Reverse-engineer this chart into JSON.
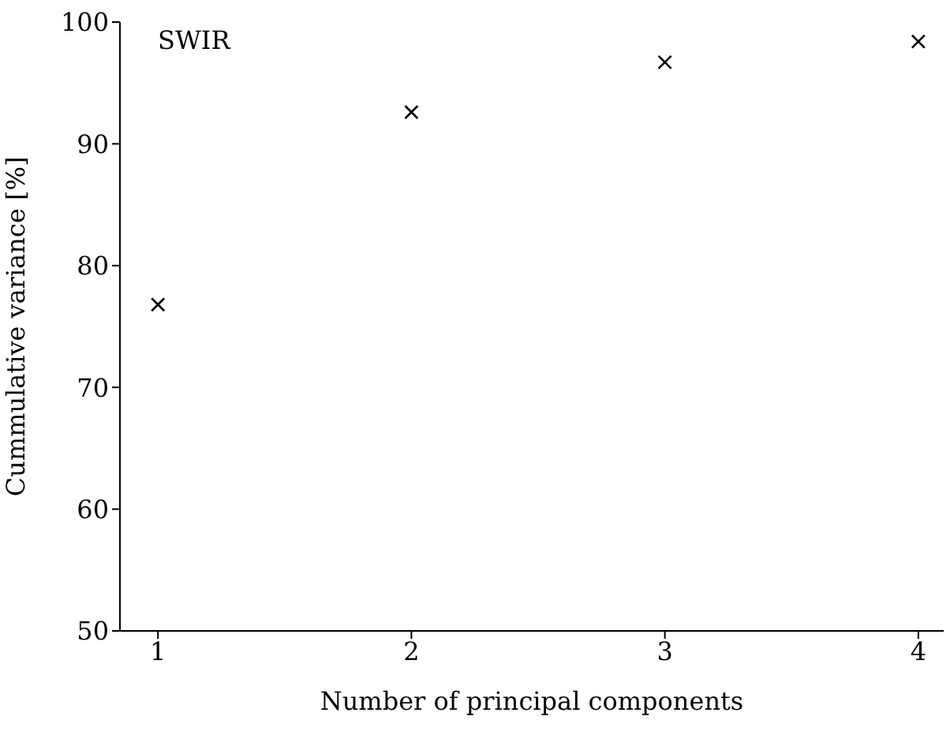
{
  "chart_data": {
    "type": "scatter",
    "xlabel": "Number of principal components",
    "ylabel": "Cummulative variance [%]",
    "annotations": [
      "SWIR"
    ],
    "x": [
      1,
      2,
      3,
      4
    ],
    "series": [
      {
        "color": "#000000",
        "values": [
          76.8,
          92.6,
          96.7,
          98.4
        ]
      }
    ],
    "xlim": [
      0.85,
      4.1
    ],
    "xticks": [
      1,
      2,
      3,
      4
    ],
    "ylim": [
      50,
      100
    ],
    "yticks": [
      50,
      60,
      70,
      80,
      90,
      100
    ],
    "marker": "cross",
    "grid": false,
    "legend": false
  }
}
